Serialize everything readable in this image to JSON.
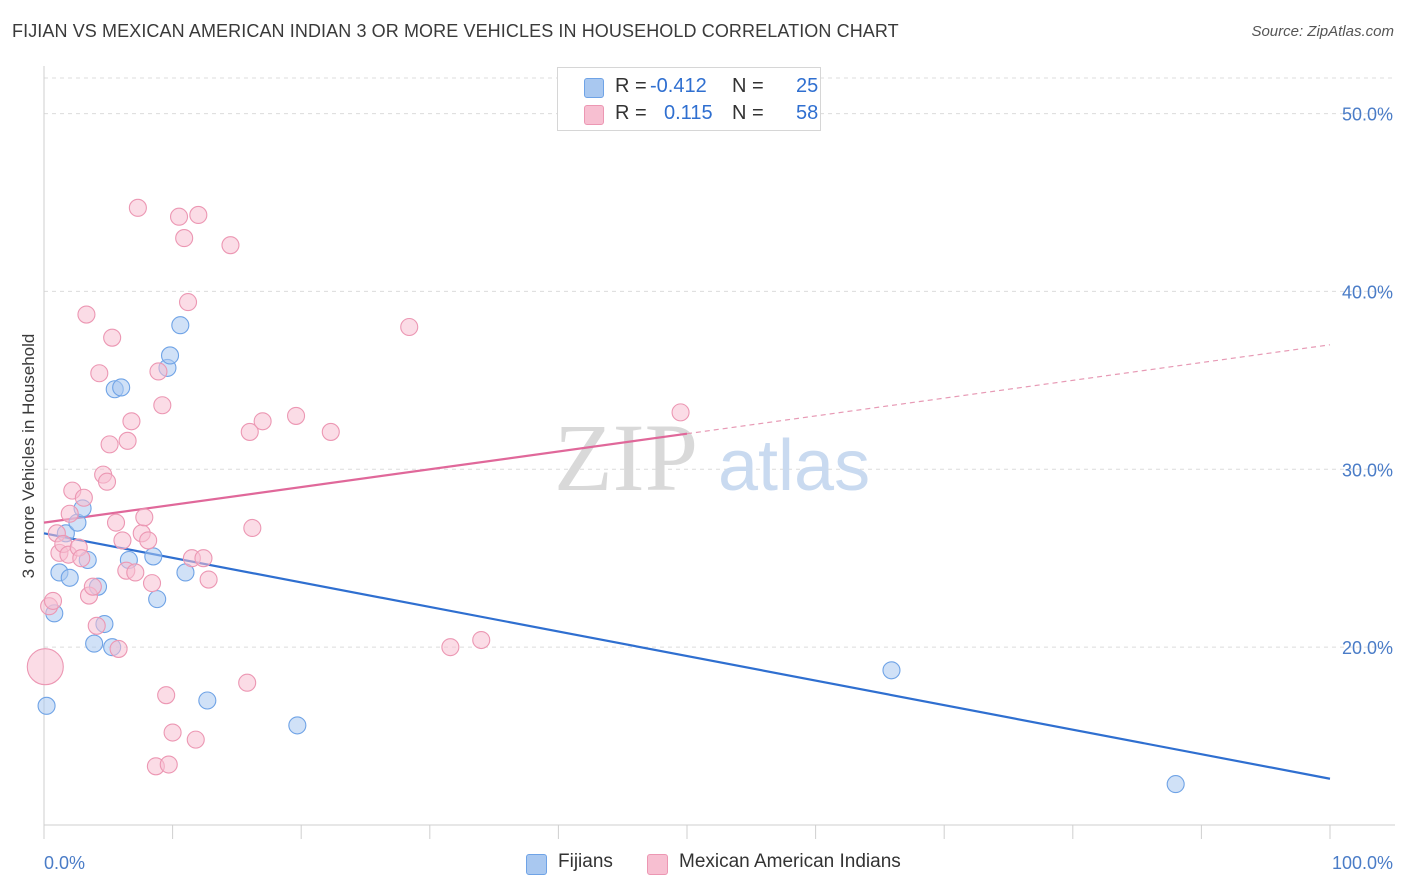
{
  "header": {
    "title": "FIJIAN VS MEXICAN AMERICAN INDIAN 3 OR MORE VEHICLES IN HOUSEHOLD CORRELATION CHART",
    "source": "Source: ZipAtlas.com"
  },
  "watermark": {
    "zip": "ZIP",
    "atlas": "atlas"
  },
  "stats_legend": {
    "rows": [
      {
        "r_label": "R =",
        "r_value": "-0.412",
        "n_label": "N =",
        "n_value": "25",
        "color": "#a9c8f0"
      },
      {
        "r_label": "R =",
        "r_value": "0.115",
        "n_label": "N =",
        "n_value": "58",
        "color": "#f7bfd1"
      }
    ]
  },
  "bottom_legend": {
    "items": [
      {
        "label": "Fijians",
        "color": "#a9c8f0"
      },
      {
        "label": "Mexican American Indians",
        "color": "#f7bfd1"
      }
    ]
  },
  "chart_data": {
    "type": "scatter",
    "title": "FIJIAN VS MEXICAN AMERICAN INDIAN 3 OR MORE VEHICLES IN HOUSEHOLD CORRELATION CHART",
    "xlabel": "",
    "ylabel": "3 or more Vehicles in Household",
    "xlim": [
      0,
      100
    ],
    "ylim": [
      10,
      52
    ],
    "x_tick_labels": [
      "0.0%",
      "100.0%"
    ],
    "y_ticks": [
      20,
      30,
      40,
      50
    ],
    "y_tick_labels": [
      "20.0%",
      "30.0%",
      "40.0%",
      "50.0%"
    ],
    "grid": true,
    "series": [
      {
        "name": "Fijians",
        "color": "#6fa3e6",
        "fill": "#a9c8f0",
        "points": [
          [
            0.2,
            16.7
          ],
          [
            0.8,
            21.9
          ],
          [
            1.2,
            24.2
          ],
          [
            1.7,
            26.4
          ],
          [
            2.0,
            23.9
          ],
          [
            2.6,
            27.0
          ],
          [
            3.0,
            27.8
          ],
          [
            3.4,
            24.9
          ],
          [
            3.9,
            20.2
          ],
          [
            4.2,
            23.4
          ],
          [
            4.7,
            21.3
          ],
          [
            5.3,
            20.0
          ],
          [
            5.5,
            34.5
          ],
          [
            6.0,
            34.6
          ],
          [
            6.6,
            24.9
          ],
          [
            8.5,
            25.1
          ],
          [
            8.8,
            22.7
          ],
          [
            9.6,
            35.7
          ],
          [
            9.8,
            36.4
          ],
          [
            10.6,
            38.1
          ],
          [
            11.0,
            24.2
          ],
          [
            12.7,
            17.0
          ],
          [
            19.7,
            15.6
          ],
          [
            65.9,
            18.7
          ],
          [
            88.0,
            12.3
          ]
        ],
        "trend": {
          "x": [
            0,
            100
          ],
          "y": [
            26.4,
            12.6
          ],
          "style": "solid",
          "color": "#2f6fd0"
        }
      },
      {
        "name": "Mexican American Indians",
        "color": "#ec97b3",
        "fill": "#f7bfd1",
        "points": [
          [
            0.4,
            22.3
          ],
          [
            0.7,
            22.6
          ],
          [
            1.0,
            26.4
          ],
          [
            1.2,
            25.3
          ],
          [
            1.5,
            25.8
          ],
          [
            1.9,
            25.2
          ],
          [
            2.0,
            27.5
          ],
          [
            2.2,
            28.8
          ],
          [
            2.7,
            25.6
          ],
          [
            2.9,
            25.0
          ],
          [
            3.1,
            28.4
          ],
          [
            3.3,
            38.7
          ],
          [
            3.5,
            22.9
          ],
          [
            3.8,
            23.4
          ],
          [
            4.1,
            21.2
          ],
          [
            4.3,
            35.4
          ],
          [
            4.6,
            29.7
          ],
          [
            4.9,
            29.3
          ],
          [
            5.1,
            31.4
          ],
          [
            5.3,
            37.4
          ],
          [
            5.6,
            27.0
          ],
          [
            5.8,
            19.9
          ],
          [
            6.1,
            26.0
          ],
          [
            6.4,
            24.3
          ],
          [
            6.5,
            31.6
          ],
          [
            6.8,
            32.7
          ],
          [
            7.1,
            24.2
          ],
          [
            7.3,
            44.7
          ],
          [
            7.6,
            26.4
          ],
          [
            7.8,
            27.3
          ],
          [
            8.1,
            26.0
          ],
          [
            8.4,
            23.6
          ],
          [
            8.7,
            13.3
          ],
          [
            8.9,
            35.5
          ],
          [
            9.2,
            33.6
          ],
          [
            9.5,
            17.3
          ],
          [
            9.7,
            13.4
          ],
          [
            10.0,
            15.2
          ],
          [
            10.5,
            44.2
          ],
          [
            10.9,
            43.0
          ],
          [
            11.2,
            39.4
          ],
          [
            11.5,
            25.0
          ],
          [
            11.8,
            14.8
          ],
          [
            12.0,
            44.3
          ],
          [
            12.4,
            25.0
          ],
          [
            12.8,
            23.8
          ],
          [
            14.5,
            42.6
          ],
          [
            15.8,
            18.0
          ],
          [
            16.0,
            32.1
          ],
          [
            16.2,
            26.7
          ],
          [
            17.0,
            32.7
          ],
          [
            19.6,
            33.0
          ],
          [
            22.3,
            32.1
          ],
          [
            28.4,
            38.0
          ],
          [
            31.6,
            20.0
          ],
          [
            34.0,
            20.4
          ],
          [
            49.5,
            33.2
          ],
          [
            0.1,
            18.9
          ]
        ],
        "trend": {
          "x": [
            0,
            50
          ],
          "y": [
            27.0,
            32.0
          ],
          "style": "solid",
          "color": "#e0689a"
        },
        "trend_extension": {
          "x": [
            50,
            100
          ],
          "y": [
            32.0,
            37.0
          ],
          "style": "dashed",
          "color": "#e79ab5"
        }
      }
    ]
  }
}
